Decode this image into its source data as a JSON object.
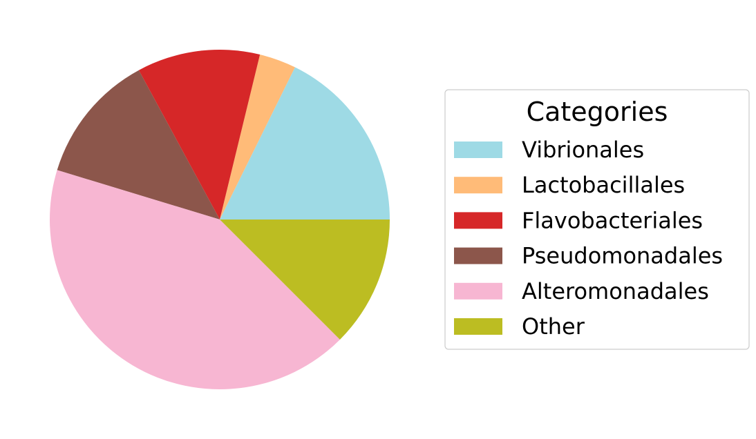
{
  "chart_data": {
    "type": "pie",
    "title": "",
    "legend": {
      "title": "Categories",
      "placement": "right"
    },
    "start_angle_deg": 0,
    "direction": "counterclockwise",
    "slices": [
      {
        "label": "Vibrionales",
        "value": 17.7,
        "color": "#9edae5"
      },
      {
        "label": "Lactobacillales",
        "value": 3.5,
        "color": "#ffbb78"
      },
      {
        "label": "Flavobacteriales",
        "value": 11.7,
        "color": "#d62728"
      },
      {
        "label": "Pseudomonadales",
        "value": 12.4,
        "color": "#8c564b"
      },
      {
        "label": "Alteromonadales",
        "value": 42.2,
        "color": "#f7b6d2"
      },
      {
        "label": "Other",
        "value": 12.5,
        "color": "#bcbd22"
      }
    ]
  }
}
